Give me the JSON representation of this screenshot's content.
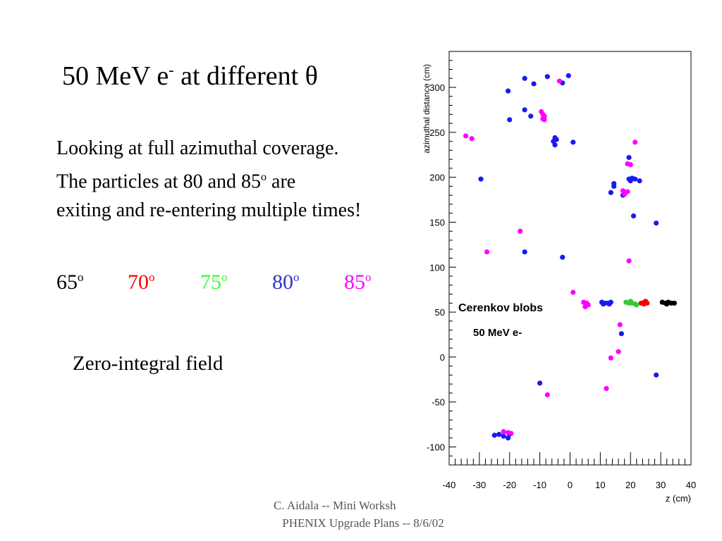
{
  "slide": {
    "title_main": "50 MeV e",
    "title_sup": "-",
    "title_rest": " at different θ",
    "line1": "Looking at full azimuthal coverage.",
    "line2_a": "The particles at 80 and 85",
    "line2_sup": "o",
    "line2_b": " are",
    "line3": "exiting and re-entering multiple times!",
    "field_note": "Zero-integral field",
    "footer_line1": "C. Aidala -- Mini Worksh",
    "footer_line2": "PHENIX Upgrade Plans -- 8/6/02"
  },
  "angles": [
    {
      "value": "65",
      "sup": "o",
      "color": "#000000"
    },
    {
      "value": "70",
      "sup": "o",
      "color": "#ff0000"
    },
    {
      "value": "75",
      "sup": "o",
      "color": "#33ff33"
    },
    {
      "value": "80",
      "sup": "o",
      "color": "#3333cc"
    },
    {
      "value": "85",
      "sup": "o",
      "color": "#ff00ff"
    }
  ],
  "chart_data": {
    "type": "scatter",
    "xlabel": "z (cm)",
    "ylabel": "azimuthal distance (cm)",
    "xlim": [
      -40,
      40
    ],
    "ylim": [
      -120,
      340
    ],
    "x_ticks": [
      -40,
      -30,
      -20,
      -10,
      0,
      10,
      20,
      30,
      40
    ],
    "y_ticks": [
      -100,
      -50,
      0,
      50,
      100,
      150,
      200,
      250,
      300
    ],
    "annotations": [
      "Cerenkov blobs",
      "50 MeV e-"
    ],
    "series": [
      {
        "name": "65°",
        "color": "#000000",
        "points": [
          [
            30.5,
            61
          ],
          [
            31.5,
            60
          ],
          [
            32.5,
            61
          ],
          [
            33.5,
            60
          ],
          [
            34.5,
            60
          ],
          [
            32,
            59
          ]
        ]
      },
      {
        "name": "70°",
        "color": "#ff0000",
        "points": [
          [
            23.5,
            60
          ],
          [
            24.5,
            61
          ],
          [
            25.5,
            60
          ],
          [
            24.5,
            59
          ],
          [
            25,
            62
          ]
        ]
      },
      {
        "name": "75°",
        "color": "#33cc33",
        "points": [
          [
            18.5,
            61
          ],
          [
            19.5,
            60
          ],
          [
            20.5,
            60
          ],
          [
            21.5,
            59
          ],
          [
            20,
            62
          ],
          [
            22,
            58
          ]
        ]
      },
      {
        "name": "80°",
        "color": "#1a1aee",
        "points": [
          [
            -20.5,
            296
          ],
          [
            -15,
            310
          ],
          [
            -12,
            304
          ],
          [
            -7.5,
            312
          ],
          [
            -2.5,
            305
          ],
          [
            -0.5,
            313
          ],
          [
            -15,
            275
          ],
          [
            -13,
            268
          ],
          [
            -20,
            264
          ],
          [
            -5,
            244
          ],
          [
            -5.5,
            240
          ],
          [
            -5,
            236
          ],
          [
            -4.5,
            242
          ],
          [
            1,
            239
          ],
          [
            -29.5,
            198
          ],
          [
            -15,
            117
          ],
          [
            -2.5,
            111
          ],
          [
            13.5,
            183
          ],
          [
            14.5,
            190
          ],
          [
            14.5,
            193
          ],
          [
            17.5,
            180
          ],
          [
            21,
            157
          ],
          [
            28.5,
            149
          ],
          [
            19.5,
            222
          ],
          [
            19.5,
            198
          ],
          [
            20.5,
            199
          ],
          [
            21.5,
            198
          ],
          [
            20,
            196
          ],
          [
            23,
            196
          ],
          [
            10.5,
            61
          ],
          [
            11.5,
            60
          ],
          [
            12.5,
            60
          ],
          [
            13.5,
            61
          ],
          [
            11,
            59
          ],
          [
            13,
            59
          ],
          [
            17,
            26
          ],
          [
            -10,
            -29
          ],
          [
            28.5,
            -20
          ],
          [
            -25,
            -87
          ],
          [
            -23.5,
            -86
          ],
          [
            -22,
            -88
          ],
          [
            -20.5,
            -90
          ],
          [
            -20,
            -86
          ]
        ]
      },
      {
        "name": "85°",
        "color": "#ff00ff",
        "points": [
          [
            -34.5,
            246
          ],
          [
            -32.5,
            243
          ],
          [
            -9.5,
            273
          ],
          [
            -9,
            270
          ],
          [
            -8.5,
            268
          ],
          [
            -9,
            265
          ],
          [
            -8.5,
            264
          ],
          [
            -3.5,
            307
          ],
          [
            -16.5,
            140
          ],
          [
            -27.5,
            117
          ],
          [
            1,
            72
          ],
          [
            4.5,
            61
          ],
          [
            5.5,
            60
          ],
          [
            6,
            58
          ],
          [
            5,
            56
          ],
          [
            19,
            215
          ],
          [
            20,
            214
          ],
          [
            21.5,
            239
          ],
          [
            17.5,
            185
          ],
          [
            18,
            183
          ],
          [
            19,
            184
          ],
          [
            18,
            181
          ],
          [
            19.5,
            107
          ],
          [
            16.5,
            36
          ],
          [
            16,
            6
          ],
          [
            13.5,
            -1
          ],
          [
            12,
            -35
          ],
          [
            -7.5,
            -42
          ],
          [
            -22,
            -83
          ],
          [
            -20.5,
            -84
          ],
          [
            -19.5,
            -85
          ]
        ]
      }
    ]
  }
}
